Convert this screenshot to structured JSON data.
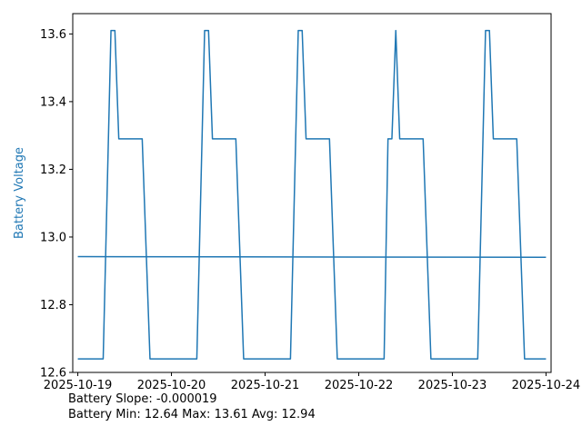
{
  "chart_data": {
    "type": "line",
    "ylabel": "Battery Voltage",
    "ylabel_color": "#1f77b4",
    "line_color": "#1f77b4",
    "ylim": [
      12.6,
      13.66
    ],
    "yticks": [
      12.6,
      12.8,
      13.0,
      13.2,
      13.4,
      13.6
    ],
    "ytick_labels": [
      "12.6",
      "12.8",
      "13.0",
      "13.2",
      "13.4",
      "13.6"
    ],
    "xlim": [
      "2025-10-18T22:42",
      "2025-10-24T01:18"
    ],
    "xticks": [
      "2025-10-19",
      "2025-10-20",
      "2025-10-21",
      "2025-10-22",
      "2025-10-23",
      "2025-10-24"
    ],
    "xtick_labels": [
      "2025-10-19",
      "2025-10-20",
      "2025-10-21",
      "2025-10-22",
      "2025-10-23",
      "2025-10-24"
    ],
    "grid": false,
    "series": [
      {
        "points": [
          [
            "2025-10-19T00:00",
            12.64
          ],
          [
            "2025-10-19T06:30",
            12.64
          ],
          [
            "2025-10-19T08:30",
            13.61
          ],
          [
            "2025-10-19T09:30",
            13.61
          ],
          [
            "2025-10-19T10:30",
            13.29
          ],
          [
            "2025-10-19T16:30",
            13.29
          ],
          [
            "2025-10-19T18:30",
            12.64
          ],
          [
            "2025-10-20T06:30",
            12.64
          ],
          [
            "2025-10-20T08:30",
            13.61
          ],
          [
            "2025-10-20T09:30",
            13.61
          ],
          [
            "2025-10-20T10:30",
            13.29
          ],
          [
            "2025-10-20T16:30",
            13.29
          ],
          [
            "2025-10-20T18:30",
            12.64
          ],
          [
            "2025-10-21T06:30",
            12.64
          ],
          [
            "2025-10-21T08:30",
            13.61
          ],
          [
            "2025-10-21T09:30",
            13.61
          ],
          [
            "2025-10-21T10:30",
            13.29
          ],
          [
            "2025-10-21T16:30",
            13.29
          ],
          [
            "2025-10-21T18:30",
            12.64
          ],
          [
            "2025-10-22T06:30",
            12.64
          ],
          [
            "2025-10-22T07:30",
            13.29
          ],
          [
            "2025-10-22T08:30",
            13.29
          ],
          [
            "2025-10-22T09:30",
            13.61
          ],
          [
            "2025-10-22T10:30",
            13.29
          ],
          [
            "2025-10-22T16:30",
            13.29
          ],
          [
            "2025-10-22T18:30",
            12.64
          ],
          [
            "2025-10-23T06:30",
            12.64
          ],
          [
            "2025-10-23T08:30",
            13.61
          ],
          [
            "2025-10-23T09:30",
            13.61
          ],
          [
            "2025-10-23T10:30",
            13.29
          ],
          [
            "2025-10-23T16:30",
            13.29
          ],
          [
            "2025-10-23T18:30",
            12.64
          ],
          [
            "2025-10-24T00:00",
            12.64
          ]
        ]
      },
      {
        "points": [
          [
            "2025-10-19T00:00",
            12.942
          ],
          [
            "2025-10-24T00:00",
            12.94
          ]
        ]
      }
    ]
  },
  "captions": {
    "slope": "Battery Slope: -0.000019",
    "stats": "Battery Min: 12.64 Max: 13.61 Avg: 12.94"
  }
}
